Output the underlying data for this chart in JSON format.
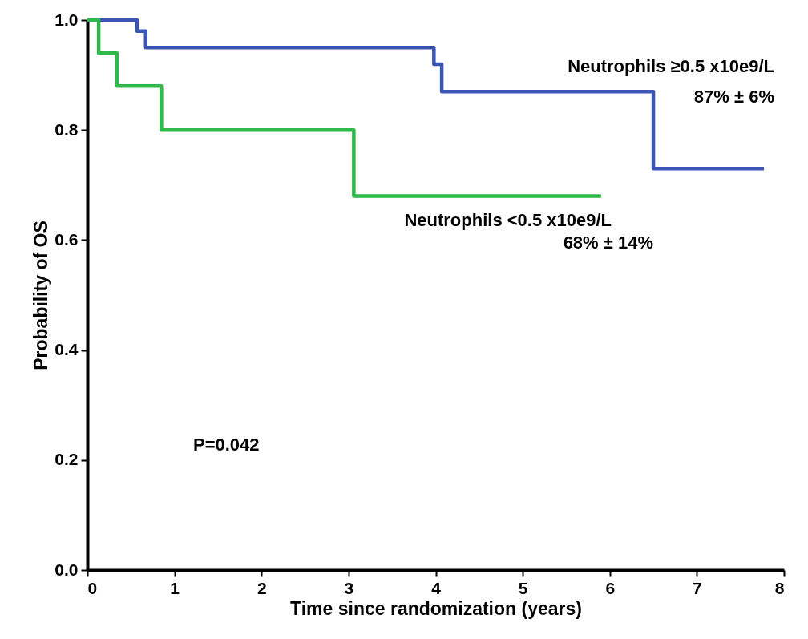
{
  "chart_data": {
    "type": "step",
    "xlabel": "Time since randomization (years)",
    "ylabel": "Probability of OS",
    "xlim": [
      0,
      8
    ],
    "xticks": [
      0,
      1,
      2,
      3,
      4,
      5,
      6,
      7,
      8
    ],
    "ylim": [
      0,
      1
    ],
    "yticks": [
      {
        "value": 0,
        "label": "0.0"
      },
      {
        "value": 0.2,
        "label": "0.2"
      },
      {
        "value": 0.4,
        "label": "0.4"
      },
      {
        "value": 0.6,
        "label": "0.6"
      },
      {
        "value": 0.8,
        "label": "0.8"
      },
      {
        "value": 1,
        "label": "1.0"
      }
    ],
    "series": [
      {
        "name": "Neutrophils ≥0.5 x10e9/L",
        "color": "#3b55b5",
        "x": [
          0,
          0.57,
          0.67,
          3.98,
          4.07,
          6.5,
          7.77
        ],
        "values": [
          1,
          0.98,
          0.95,
          0.92,
          0.87,
          0.73,
          0.73
        ]
      },
      {
        "name": "Neutrophils <0.5 x10e9/L",
        "color": "#2fb84b",
        "x": [
          0,
          0.13,
          0.34,
          0.85,
          3.06,
          5.9
        ],
        "values": [
          1,
          0.94,
          0.88,
          0.8,
          0.68,
          0.68
        ]
      }
    ],
    "annotations": [
      "87% ± 6%",
      "68% ± 14%",
      "P=0.042"
    ]
  }
}
